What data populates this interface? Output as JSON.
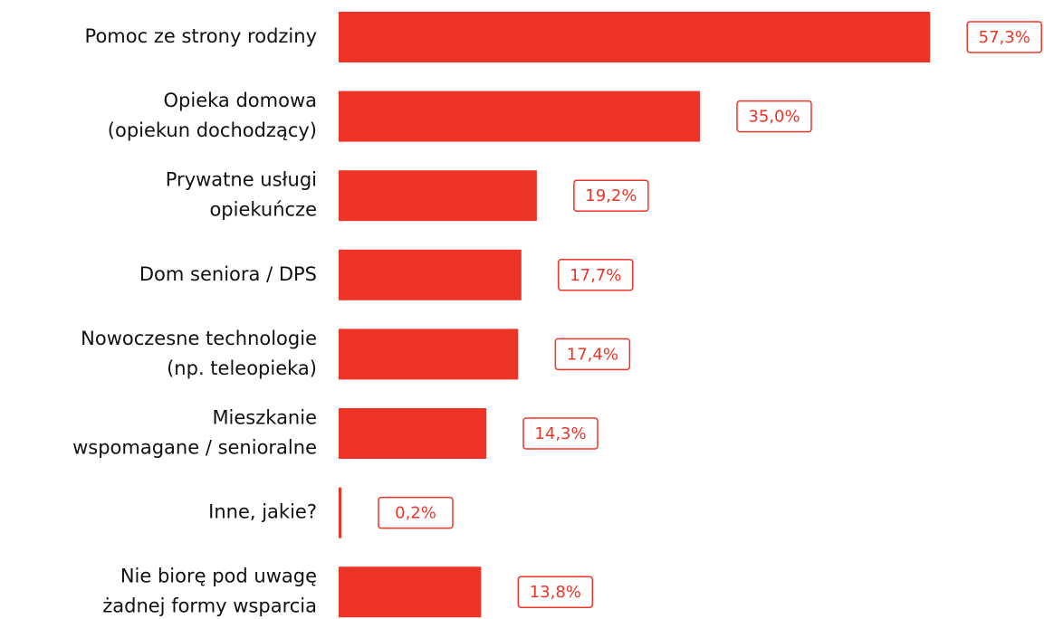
{
  "chart_data": {
    "type": "bar",
    "orientation": "horizontal",
    "categories": [
      [
        "Pomoc ze strony rodziny"
      ],
      [
        "Opieka domowa",
        "(opiekun dochodzący)"
      ],
      [
        "Prywatne usługi",
        "opiekuńcze"
      ],
      [
        "Dom seniora / DPS"
      ],
      [
        "Nowoczesne technologie",
        "(np. teleopieka)"
      ],
      [
        "Mieszkanie",
        "wspomagane / senioralne"
      ],
      [
        "Inne, jakie?"
      ],
      [
        "Nie biorę pod uwagę",
        "żadnej formy wsparcia"
      ]
    ],
    "values": [
      57.3,
      35.0,
      19.2,
      17.7,
      17.4,
      14.3,
      0.2,
      13.8
    ],
    "value_labels": [
      "57,3%",
      "35,0%",
      "19,2%",
      "17,7%",
      "17,4%",
      "14,3%",
      "0,2%",
      "13,8%"
    ],
    "color": "#ee3427"
  }
}
